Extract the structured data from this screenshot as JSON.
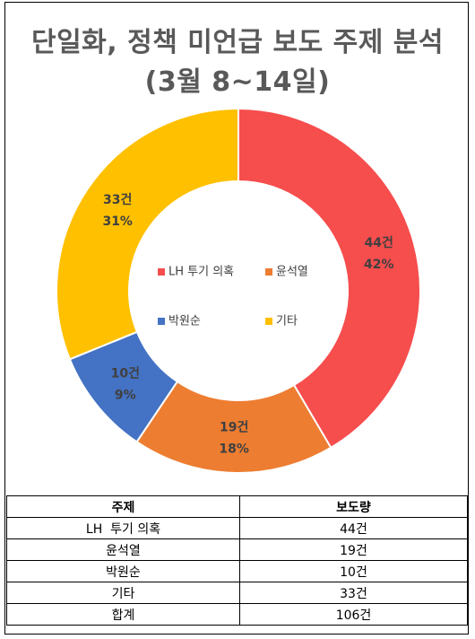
{
  "title_line1": "단일화, 정책 미언급 보도 주제 분석",
  "title_line2": "(3월 8~14일)",
  "chart_data": {
    "type": "pie",
    "variant": "donut",
    "categories": [
      "LH 투기 의혹",
      "윤석열",
      "박원순",
      "기타"
    ],
    "values": [
      44,
      19,
      10,
      33
    ],
    "value_labels": [
      "44건",
      "19건",
      "10건",
      "33건"
    ],
    "percent_labels": [
      "42%",
      "18%",
      "9%",
      "31%"
    ],
    "colors": [
      "#f64d4d",
      "#ed7d31",
      "#4472c4",
      "#ffc000"
    ],
    "legend_position": "center"
  },
  "table": {
    "headers": [
      "주제",
      "보도량"
    ],
    "rows": [
      [
        "LH  투기 의혹",
        "44건"
      ],
      [
        "윤석열",
        "19건"
      ],
      [
        "박원순",
        "10건"
      ],
      [
        "기타",
        "33건"
      ],
      [
        "합계",
        "106건"
      ]
    ]
  }
}
